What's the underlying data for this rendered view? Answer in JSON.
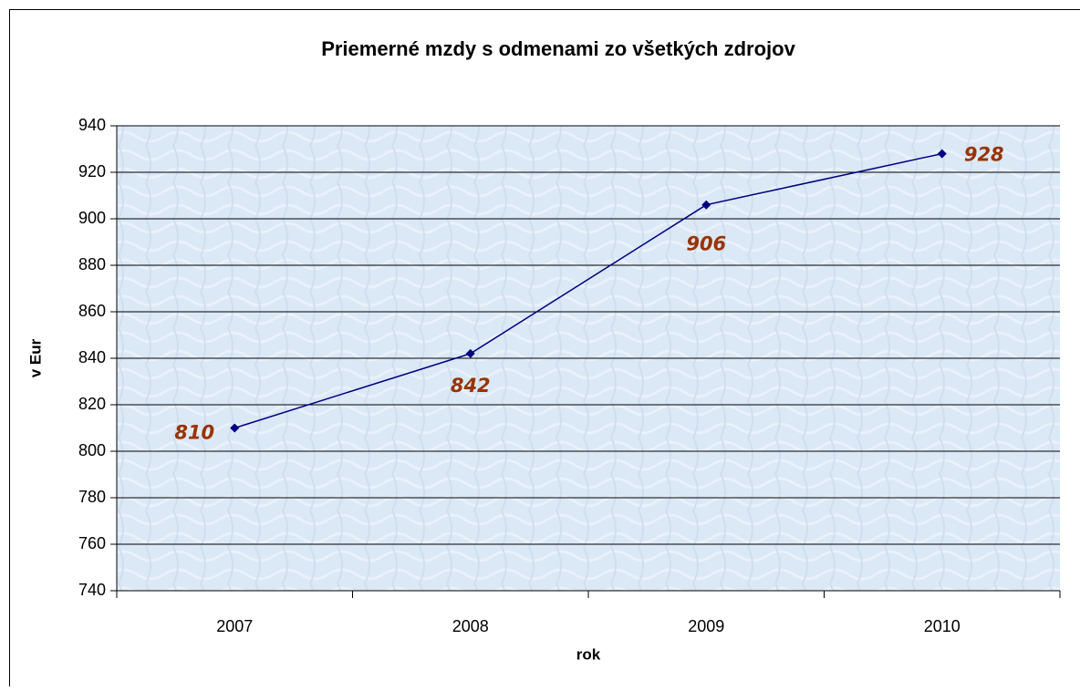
{
  "chart_data": {
    "type": "line",
    "title": "Priemerné mzdy s odmenami zo všetkých zdrojov",
    "x_label": "rok",
    "y_label": "v Eur",
    "categories": [
      "2007",
      "2008",
      "2009",
      "2010"
    ],
    "values": [
      810,
      842,
      906,
      928
    ],
    "color": "#000080",
    "label_color": "#993300",
    "ylim": [
      740,
      940
    ],
    "yticks": [
      740,
      760,
      780,
      800,
      820,
      840,
      860,
      880,
      900,
      920,
      940
    ],
    "grid": true
  }
}
